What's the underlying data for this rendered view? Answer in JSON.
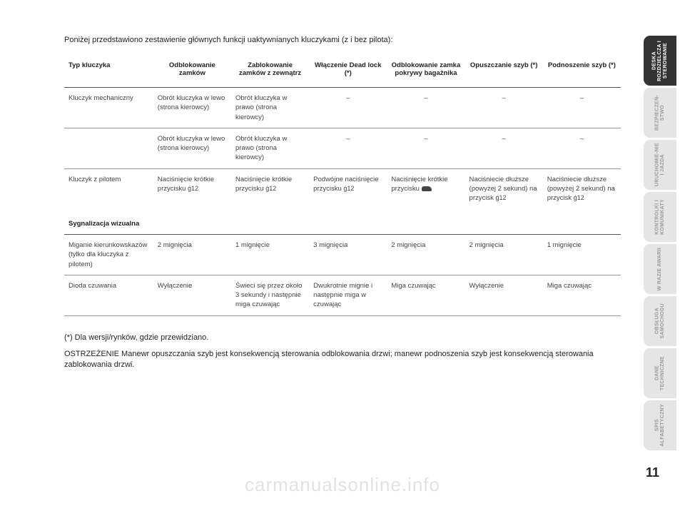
{
  "intro": "Poniżej przedstawiono zestawienie głównych funkcji uaktywnianych kluczykami (z i bez pilota):",
  "headers": {
    "col0": "Typ kluczyka",
    "col1": "Odblokowanie zamków",
    "col2": "Zablokowanie zamków z zewnątrz",
    "col3": "Włączenie Dead lock (*)",
    "col4": "Odblokowanie zamka pokrywy bagażnika",
    "col5": "Opuszczanie szyb (*)",
    "col6": "Podnoszenie szyb (*)"
  },
  "rows": {
    "r1": {
      "c0": "Kluczyk mechaniczny",
      "c1": "Obrót kluczyka w lewo (strona kierowcy)",
      "c2": "Obrót kluczyka w prawo (strona kierowcy)",
      "c3": "–",
      "c4": "–",
      "c5": "–",
      "c6": "–"
    },
    "r2": {
      "c0": "",
      "c1": "Obrót kluczyka w lewo (strona kierowcy)",
      "c2": "Obrót kluczyka w prawo (strona kierowcy)",
      "c3": "–",
      "c4": "–",
      "c5": "–",
      "c6": "–"
    },
    "r3": {
      "c0": "Kluczyk z pilotem",
      "c1": "Naciśnięcie krótkie przycisku ",
      "c2": "Naciśnięcie krótkie przycisku ",
      "c3": "Podwójne naciśnięcie przycisku ",
      "c4": "Naciśnięcie krótkie przycisku ",
      "c5": "Naciśniecie dłuższe (powyżej 2 sekund) na przycisk ",
      "c6": "Naciśniecie dłuższe (powyżej 2 sekund) na przycisk "
    },
    "sig": "Sygnalizacja wizualna",
    "r4": {
      "c0": "Miganie kierunkowskazów (tylko dla kluczyka z pilotem)",
      "c1": "2 mignięcia",
      "c2": "1 mignięcie",
      "c3": "3 mignięcia",
      "c4": "2 mignięcia",
      "c5": "2 mignięcia",
      "c6": "1 mignięcie"
    },
    "r5": {
      "c0": "Dioda czuwania",
      "c1": "Wyłączenie",
      "c2": "Świeci się przez około 3 sekundy i następnie miga czuwając",
      "c3": "Dwukrotnie mignie i następnie miga w czuwając",
      "c4": "Miga czuwając",
      "c5": "Wyłączenie",
      "c6": "Miga czuwając"
    }
  },
  "footnote": "(*) Dla wersji/rynków, gdzie przewidziano.",
  "warning": "OSTRZEŻENIE Manewr opuszczania szyb jest konsekwencją sterowania odblokowania drzwi; manewr podnoszenia szyb jest konsekwencją sterowania zablokowania drzwi.",
  "page_number": "11",
  "watermark": "carmanualsonline.info",
  "tabs": [
    {
      "label": "DESKA ROZDZIELCZA I STEROWANIE",
      "active": true
    },
    {
      "label": "BEZPIECZEŃ-STWO",
      "active": false
    },
    {
      "label": "URUCHOMIE-NIE I JAZDA",
      "active": false
    },
    {
      "label": "KONTROLKI I KOMUNIKATY",
      "active": false
    },
    {
      "label": "W RAZIE AWARII",
      "active": false
    },
    {
      "label": "OBSŁUGA SAMOCHODU",
      "active": false
    },
    {
      "label": "DANE TECHNICZNE",
      "active": false
    },
    {
      "label": "SPIS ALFABETYCZNY",
      "active": false
    }
  ]
}
